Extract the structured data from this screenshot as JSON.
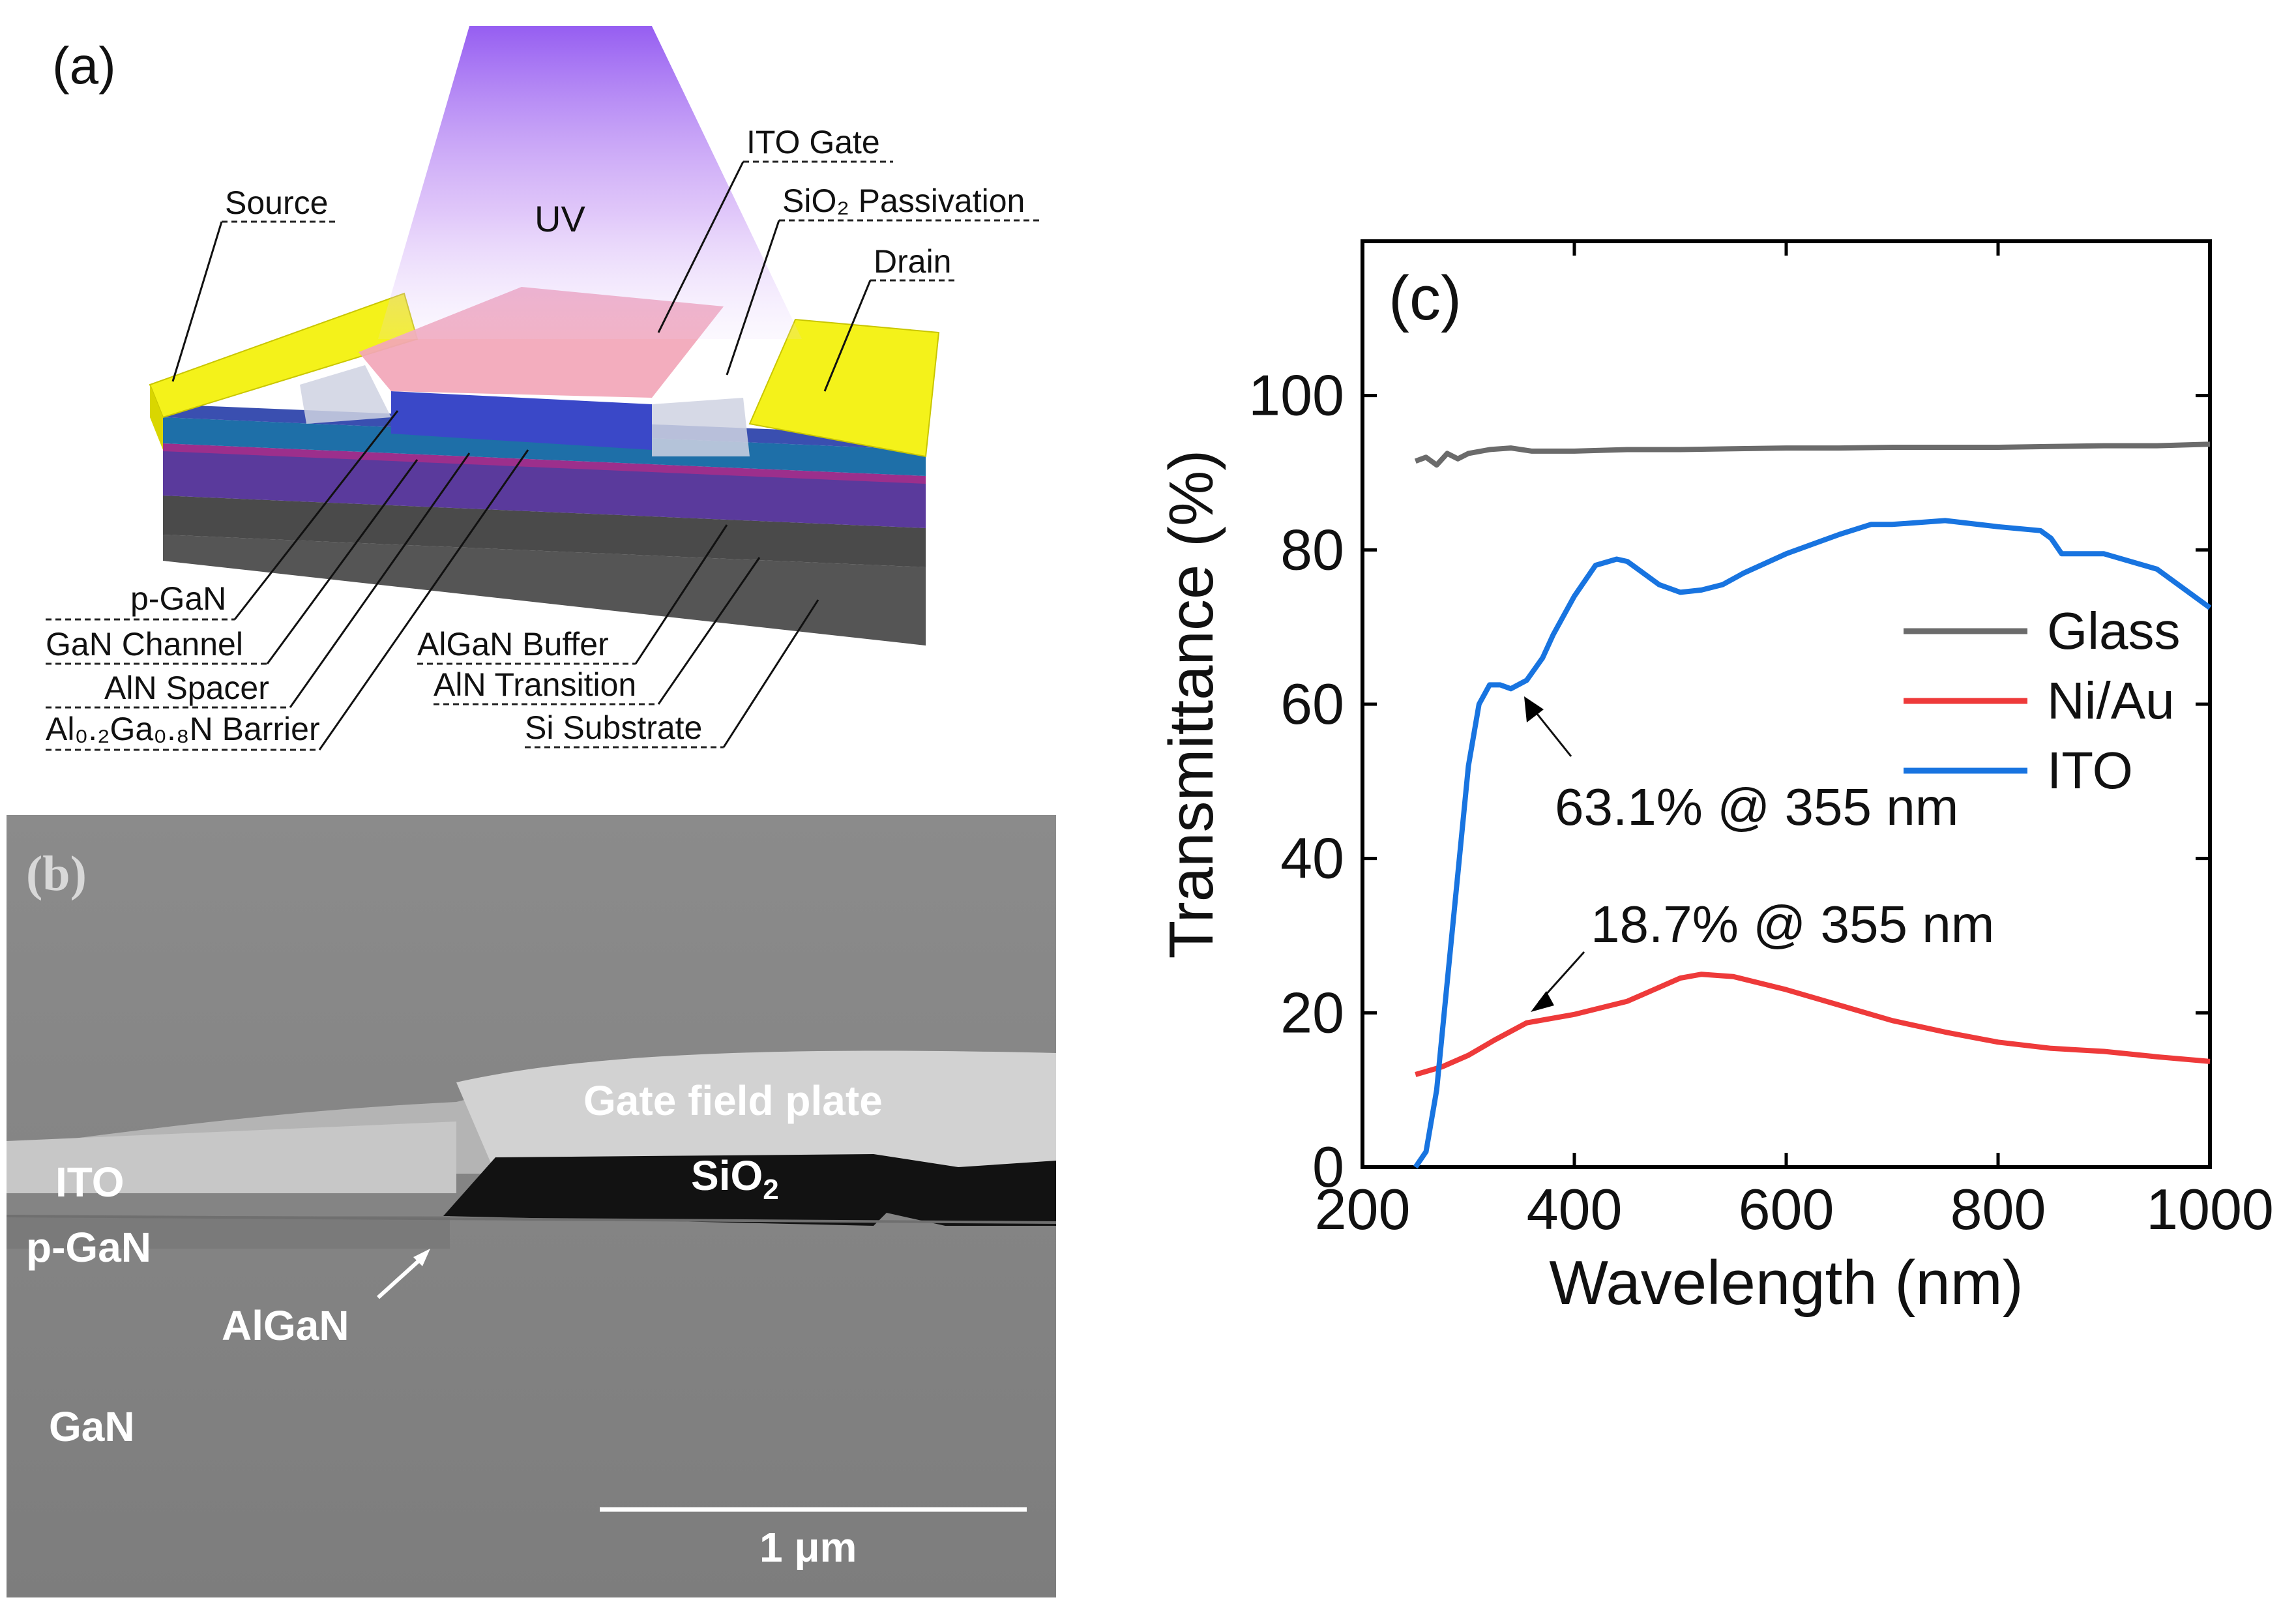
{
  "panel_a": {
    "label": "(a)",
    "uv_label": "UV",
    "callouts_top": [
      "Source",
      "ITO Gate",
      "SiO₂ Passivation",
      "Drain"
    ],
    "callouts_bottom_left": [
      "p-GaN",
      "GaN Channel",
      "AlN Spacer",
      "Al₀.₂Ga₀.₈N Barrier"
    ],
    "callouts_bottom_right": [
      "AlGaN Buffer",
      "AlN Transition",
      "Si Substrate"
    ],
    "colors": {
      "electrode": "#f4f21a",
      "ito": "#f2a6b8",
      "channel": "#1e6fa8",
      "buffer": "#5a3a9c",
      "substrate": "#4a4a4a",
      "uv": "#9b5cf0"
    }
  },
  "panel_b": {
    "label": "(b)",
    "labels": {
      "gate_field_plate": "Gate field plate",
      "ito": "ITO",
      "sio2": "SiO",
      "sio2_sub": "2",
      "pgan": "p-GaN",
      "algan": "AlGaN",
      "gan": "GaN"
    },
    "scale_bar_label": "1 μm"
  },
  "chart_data": {
    "type": "line",
    "panel_label": "(c)",
    "xlabel": "Wavelength (nm)",
    "ylabel": "Transmittance (%)",
    "xlim": [
      200,
      1000
    ],
    "ylim": [
      0,
      120
    ],
    "xticks": [
      200,
      400,
      600,
      800,
      1000
    ],
    "yticks": [
      0,
      20,
      40,
      60,
      80,
      100
    ],
    "legend_position": "right",
    "series": [
      {
        "name": "Glass",
        "color": "#6b6b6b",
        "x": [
          250,
          260,
          270,
          280,
          290,
          300,
          320,
          340,
          360,
          400,
          450,
          500,
          550,
          600,
          650,
          700,
          750,
          800,
          850,
          900,
          950,
          1000
        ],
        "y": [
          91.5,
          92.0,
          91.0,
          92.5,
          91.8,
          92.5,
          93.0,
          93.2,
          92.8,
          92.8,
          93.0,
          93.0,
          93.1,
          93.2,
          93.2,
          93.3,
          93.3,
          93.3,
          93.4,
          93.5,
          93.5,
          93.7
        ]
      },
      {
        "name": "Ni/Au",
        "color": "#ee3a3a",
        "x": [
          250,
          275,
          300,
          325,
          355,
          400,
          450,
          500,
          520,
          550,
          600,
          650,
          700,
          750,
          800,
          850,
          900,
          950,
          1000
        ],
        "y": [
          12.0,
          13.0,
          14.5,
          16.5,
          18.7,
          19.8,
          21.5,
          24.5,
          25.0,
          24.7,
          23.0,
          21.0,
          19.0,
          17.5,
          16.2,
          15.4,
          15.0,
          14.3,
          13.7
        ]
      },
      {
        "name": "ITO",
        "color": "#1874e0",
        "x": [
          250,
          260,
          270,
          280,
          290,
          300,
          310,
          320,
          330,
          340,
          355,
          370,
          380,
          400,
          420,
          440,
          450,
          460,
          480,
          500,
          520,
          540,
          560,
          600,
          650,
          680,
          700,
          750,
          800,
          840,
          850,
          860,
          900,
          950,
          1000
        ],
        "y": [
          0.0,
          2.0,
          10.0,
          24.0,
          38.0,
          52.0,
          60.0,
          62.5,
          62.5,
          62.0,
          63.1,
          66.0,
          69.0,
          74.0,
          78.0,
          78.8,
          78.5,
          77.5,
          75.5,
          74.5,
          74.8,
          75.5,
          77.0,
          79.5,
          82.0,
          83.3,
          83.3,
          83.8,
          83.0,
          82.5,
          81.5,
          79.5,
          79.5,
          77.5,
          72.5
        ]
      }
    ],
    "annotations": [
      {
        "text": "63.1% @ 355 nm",
        "x": 355,
        "y": 63.1
      },
      {
        "text": "18.7% @ 355 nm",
        "x": 355,
        "y": 18.7
      }
    ]
  }
}
